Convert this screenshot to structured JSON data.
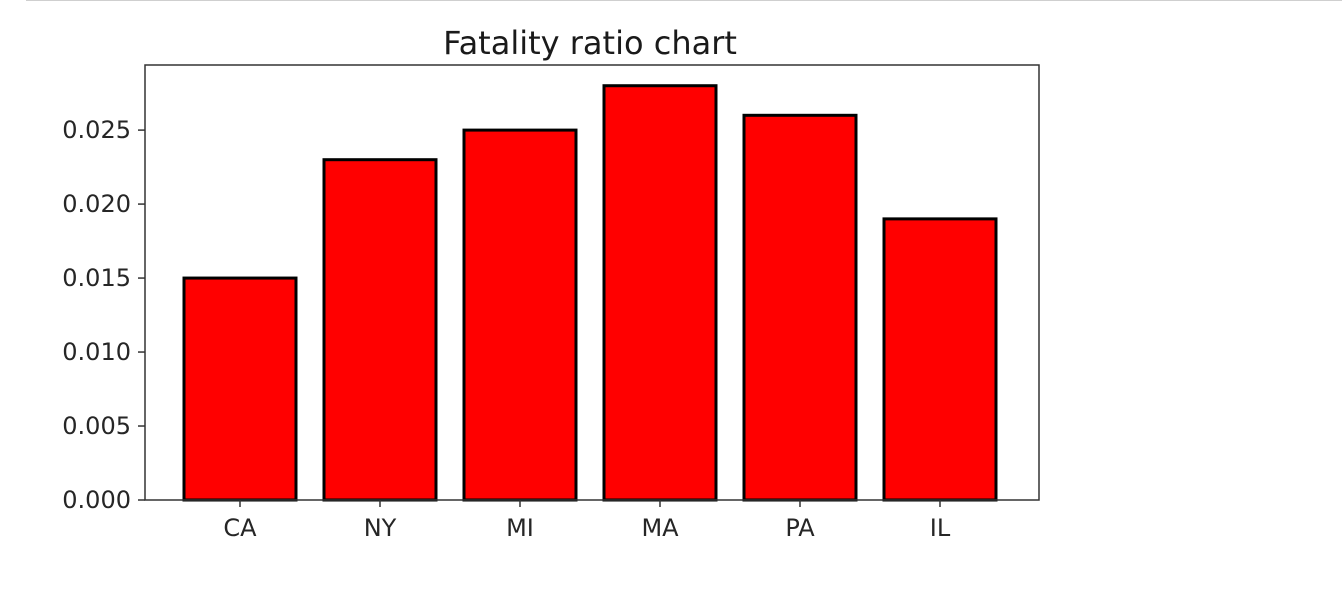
{
  "chart_data": {
    "type": "bar",
    "title": "Fatality ratio chart",
    "xlabel": "",
    "ylabel": "",
    "categories": [
      "CA",
      "NY",
      "MI",
      "MA",
      "PA",
      "IL"
    ],
    "values": [
      0.015,
      0.023,
      0.025,
      0.028,
      0.026,
      0.019
    ],
    "ylim": [
      0,
      0.0294
    ],
    "yticks": [
      0.0,
      0.005,
      0.01,
      0.015,
      0.02,
      0.025
    ],
    "ytick_labels": [
      "0.000",
      "0.005",
      "0.010",
      "0.015",
      "0.020",
      "0.025"
    ],
    "bar_color": "#ff0000",
    "edge_color": "#000000",
    "grid": false,
    "legend": "none"
  }
}
